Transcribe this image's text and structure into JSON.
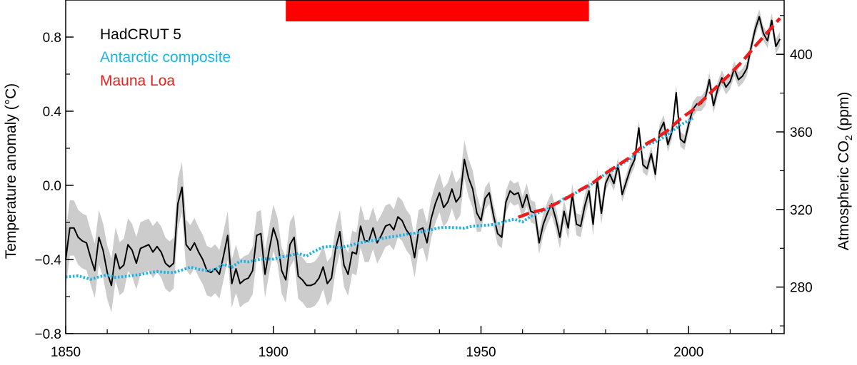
{
  "chart_data": {
    "type": "line",
    "title": "",
    "xlabel": "",
    "ylabel": "Temperature anomaly (°C)",
    "ylabel_right_prefix": "Atmospheric CO",
    "ylabel_right_sub": "2",
    "ylabel_right_suffix": " (ppm)",
    "xlim": [
      1850,
      2023
    ],
    "ylim": [
      -0.8,
      1.0
    ],
    "ylim_right": [
      256,
      428
    ],
    "x_ticks": [
      1850,
      1900,
      1950,
      2000
    ],
    "x_tick_labels": [
      "1850",
      "1900",
      "1950",
      "2000"
    ],
    "y_ticks": [
      -0.8,
      -0.4,
      0.0,
      0.4,
      0.8
    ],
    "y_tick_labels": [
      "−0.8",
      "−0.4",
      "0.0",
      "0.4",
      "0.8"
    ],
    "y_right_ticks": [
      280,
      320,
      360,
      400
    ],
    "y_right_tick_labels": [
      "280",
      "320",
      "360",
      "400"
    ],
    "highlight_band": {
      "x_start": 1903,
      "x_end": 1976,
      "color": "#ff0000"
    },
    "legend_position": "top-left",
    "colors": {
      "hadcrut": "#000000",
      "antarctic": "#1ab3e8",
      "maunaloa": "#ee1c1c",
      "band": "#cccccc",
      "highlight": "#ff0000"
    },
    "series": [
      {
        "name": "HadCRUT 5",
        "axis": "left",
        "x_start": 1850,
        "values": [
          -0.4,
          -0.23,
          -0.23,
          -0.28,
          -0.3,
          -0.31,
          -0.39,
          -0.46,
          -0.28,
          -0.35,
          -0.47,
          -0.54,
          -0.37,
          -0.45,
          -0.43,
          -0.32,
          -0.35,
          -0.42,
          -0.34,
          -0.33,
          -0.32,
          -0.36,
          -0.33,
          -0.36,
          -0.42,
          -0.44,
          -0.42,
          -0.1,
          -0.01,
          -0.32,
          -0.35,
          -0.31,
          -0.36,
          -0.4,
          -0.46,
          -0.47,
          -0.45,
          -0.48,
          -0.38,
          -0.27,
          -0.53,
          -0.45,
          -0.53,
          -0.51,
          -0.5,
          -0.46,
          -0.27,
          -0.26,
          -0.48,
          -0.35,
          -0.23,
          -0.3,
          -0.46,
          -0.51,
          -0.32,
          -0.28,
          -0.49,
          -0.51,
          -0.54,
          -0.54,
          -0.53,
          -0.5,
          -0.44,
          -0.53,
          -0.5,
          -0.34,
          -0.25,
          -0.43,
          -0.48,
          -0.36,
          -0.37,
          -0.22,
          -0.3,
          -0.3,
          -0.23,
          -0.31,
          -0.27,
          -0.22,
          -0.21,
          -0.24,
          -0.17,
          -0.19,
          -0.24,
          -0.27,
          -0.39,
          -0.24,
          -0.23,
          -0.31,
          -0.18,
          -0.1,
          -0.04,
          -0.12,
          -0.09,
          -0.02,
          -0.09,
          -0.06,
          0.14,
          0.04,
          -0.02,
          -0.15,
          -0.19,
          -0.07,
          -0.04,
          -0.16,
          -0.26,
          -0.28,
          -0.09,
          -0.03,
          -0.05,
          -0.04,
          -0.12,
          -0.05,
          -0.14,
          -0.15,
          -0.31,
          -0.21,
          -0.15,
          -0.1,
          -0.18,
          -0.28,
          -0.14,
          -0.23,
          -0.05,
          -0.21,
          -0.22,
          -0.11,
          -0.03,
          -0.21,
          0.03,
          -0.15,
          0.01,
          0.06,
          0.01,
          0.11,
          -0.05,
          0.02,
          0.09,
          0.14,
          0.31,
          0.11,
          0.09,
          0.17,
          0.06,
          0.29,
          0.34,
          0.22,
          0.29,
          0.5,
          0.25,
          0.23,
          0.33,
          0.41,
          0.44,
          0.44,
          0.47,
          0.57,
          0.43,
          0.52,
          0.58,
          0.53,
          0.56,
          0.63,
          0.57,
          0.59,
          0.63,
          0.74,
          0.84,
          0.91,
          0.82,
          0.78,
          0.89,
          0.75,
          0.79
        ]
      },
      {
        "name": "Antarctic composite",
        "axis": "right",
        "points": [
          [
            1850,
            285.2
          ],
          [
            1853,
            285.8
          ],
          [
            1856,
            284.0
          ],
          [
            1858,
            285.3
          ],
          [
            1860,
            286.3
          ],
          [
            1862,
            285.0
          ],
          [
            1864,
            285.4
          ],
          [
            1866,
            285.9
          ],
          [
            1868,
            286.5
          ],
          [
            1870,
            287.3
          ],
          [
            1872,
            288.0
          ],
          [
            1874,
            287.6
          ],
          [
            1876,
            287.5
          ],
          [
            1878,
            288.8
          ],
          [
            1880,
            290.3
          ],
          [
            1882,
            289.2
          ],
          [
            1884,
            288.5
          ],
          [
            1886,
            289.0
          ],
          [
            1888,
            291.8
          ],
          [
            1890,
            290.2
          ],
          [
            1892,
            293.4
          ],
          [
            1894,
            293.0
          ],
          [
            1896,
            294.0
          ],
          [
            1898,
            294.6
          ],
          [
            1900,
            294.4
          ],
          [
            1902,
            295.6
          ],
          [
            1904,
            296.3
          ],
          [
            1906,
            297.4
          ],
          [
            1908,
            296.0
          ],
          [
            1910,
            298.6
          ],
          [
            1912,
            300.6
          ],
          [
            1914,
            301.0
          ],
          [
            1916,
            300.3
          ],
          [
            1918,
            301.2
          ],
          [
            1920,
            302.4
          ],
          [
            1922,
            303.3
          ],
          [
            1924,
            304.0
          ],
          [
            1926,
            305.0
          ],
          [
            1928,
            305.8
          ],
          [
            1930,
            306.4
          ],
          [
            1932,
            307.2
          ],
          [
            1934,
            307.8
          ],
          [
            1936,
            308.6
          ],
          [
            1938,
            309.6
          ],
          [
            1940,
            310.6
          ],
          [
            1942,
            310.8
          ],
          [
            1944,
            310.6
          ],
          [
            1946,
            310.4
          ],
          [
            1948,
            311.4
          ],
          [
            1950,
            311.7
          ],
          [
            1952,
            312.0
          ],
          [
            1954,
            312.6
          ],
          [
            1956,
            314.0
          ],
          [
            1958,
            315.0
          ],
          [
            1960,
            313.6
          ],
          [
            1962,
            316.5
          ],
          [
            1964,
            318.5
          ],
          [
            1966,
            320.2
          ],
          [
            1968,
            322.9
          ],
          [
            1970,
            325.6
          ],
          [
            1972,
            327.6
          ],
          [
            1974,
            330.0
          ],
          [
            1976,
            331.9
          ],
          [
            1978,
            335.2
          ],
          [
            1980,
            338.5
          ],
          [
            1982,
            340.4
          ],
          [
            1984,
            343.6
          ],
          [
            1986,
            346.2
          ],
          [
            1988,
            349.8
          ],
          [
            1990,
            353.6
          ],
          [
            1992,
            354.8
          ],
          [
            1994,
            357.2
          ],
          [
            1996,
            360.4
          ],
          [
            1998,
            363.6
          ],
          [
            2001,
            367.0
          ]
        ]
      },
      {
        "name": "Mauna Loa",
        "axis": "right",
        "points": [
          [
            1959,
            316.0
          ],
          [
            1962,
            318.4
          ],
          [
            1965,
            319.9
          ],
          [
            1968,
            323.0
          ],
          [
            1971,
            326.3
          ],
          [
            1974,
            330.2
          ],
          [
            1977,
            333.8
          ],
          [
            1980,
            338.7
          ],
          [
            1983,
            342.9
          ],
          [
            1986,
            347.0
          ],
          [
            1989,
            352.9
          ],
          [
            1992,
            356.4
          ],
          [
            1995,
            360.8
          ],
          [
            1998,
            366.7
          ],
          [
            2001,
            371.3
          ],
          [
            2004,
            377.5
          ],
          [
            2007,
            383.8
          ],
          [
            2010,
            389.9
          ],
          [
            2013,
            396.5
          ],
          [
            2016,
            404.2
          ],
          [
            2019,
            411.4
          ],
          [
            2022,
            418.6
          ]
        ]
      }
    ]
  }
}
